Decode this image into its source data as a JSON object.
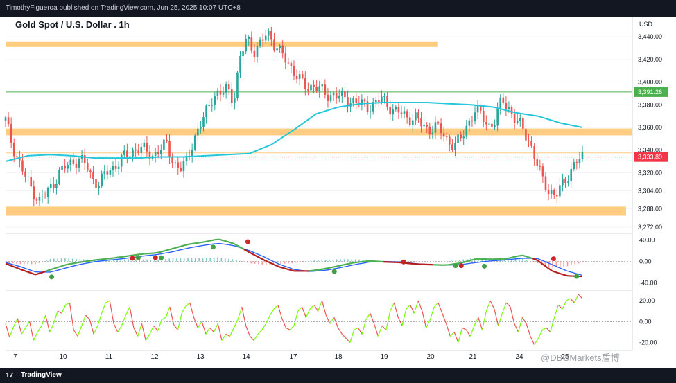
{
  "header": {
    "publisher_line": "TimothyFigueroa published on TradingView.com, Jun 25, 2025 10:07 UTC+8"
  },
  "footer": {
    "brand": "TradingView",
    "watermark": "@DBGMarkets盾博"
  },
  "colors": {
    "zone": "#ffcc80",
    "ma": "#26c6da",
    "candle": "#26a69a",
    "bear": "#ef5350",
    "level_green": "#4caf50",
    "level_red": "#f23645",
    "macd_fast": "#4caf50",
    "macd_slow": "#2962ff",
    "macd_red": "#b71c1c",
    "osc_up": "#76ff03",
    "osc_down": "#ef5350"
  },
  "chart_data": {
    "type": "candlestick",
    "title": "Gold Spot / U.S. Dollar . 1h",
    "currency": "USD",
    "x_ticks": [
      "7",
      "10",
      "11",
      "12",
      "13",
      "14",
      "17",
      "18",
      "19",
      "20",
      "21",
      "24",
      "25"
    ],
    "y_ticks": [
      "3,440.00",
      "3,420.00",
      "3,400.00",
      "3,380.00",
      "3,360.00",
      "3,340.00",
      "3,320.00",
      "3,304.00",
      "3,288.00",
      "3,272.00"
    ],
    "ylim": [
      3267,
      3453
    ],
    "price_labels": [
      {
        "value": 3391.26,
        "text": "3,391.26",
        "color": "green"
      },
      {
        "value": 3333.89,
        "text": "3,333.89",
        "color": "red"
      }
    ],
    "zones": [
      {
        "low": 3432,
        "high": 3436,
        "end_frac": 0.69
      },
      {
        "low": 3353,
        "high": 3359,
        "end_frac": 1.0
      },
      {
        "low": 3282,
        "high": 3290,
        "end_frac": 0.99
      }
    ],
    "hlines": [
      {
        "value": 3391.26,
        "color": "green"
      },
      {
        "value": 3337.5,
        "color": "orange"
      }
    ],
    "close_path": [
      3366,
      3345,
      3330,
      3315,
      3305,
      3295,
      3300,
      3310,
      3320,
      3325,
      3330,
      3332,
      3326,
      3315,
      3310,
      3320,
      3325,
      3330,
      3335,
      3340,
      3342,
      3338,
      3336,
      3340,
      3345,
      3330,
      3322,
      3330,
      3350,
      3360,
      3375,
      3390,
      3388,
      3395,
      3385,
      3420,
      3440,
      3428,
      3432,
      3445,
      3435,
      3425,
      3418,
      3410,
      3400,
      3395,
      3398,
      3392,
      3388,
      3390,
      3386,
      3384,
      3384,
      3380,
      3378,
      3382,
      3385,
      3380,
      3375,
      3372,
      3368,
      3370,
      3362,
      3358,
      3362,
      3355,
      3348,
      3345,
      3350,
      3365,
      3375,
      3370,
      3362,
      3365,
      3385,
      3378,
      3366,
      3360,
      3350,
      3330,
      3315,
      3305,
      3298,
      3310,
      3320,
      3328,
      3334
    ],
    "ma": [
      3330,
      3335,
      3336,
      3335,
      3333,
      3333,
      3333,
      3334,
      3334,
      3335,
      3336,
      3337,
      3345,
      3358,
      3372,
      3378,
      3381,
      3382,
      3382,
      3382,
      3381,
      3380,
      3378,
      3373,
      3370,
      3364,
      3360
    ],
    "macd": {
      "yticks": [
        "40.00",
        "0.00",
        "-40.00"
      ],
      "ylim": [
        -50,
        50
      ],
      "fast": [
        -4,
        -15,
        -25,
        -15,
        -6,
        -1,
        3,
        6,
        10,
        14,
        16,
        24,
        32,
        36,
        42,
        34,
        18,
        3,
        -10,
        -18,
        -18,
        -14,
        -8,
        -2,
        1,
        -1,
        -2,
        -5,
        -6,
        -7,
        -3,
        5,
        4,
        5,
        12,
        3,
        -18,
        -27,
        -28
      ],
      "signal": [
        -2,
        -10,
        -20,
        -20,
        -12,
        -5,
        0,
        3,
        6,
        10,
        13,
        18,
        25,
        30,
        34,
        30,
        21,
        9,
        -5,
        -15,
        -19,
        -17,
        -12,
        -6,
        -1,
        0,
        -1,
        -4,
        -6,
        -7,
        -6,
        -2,
        1,
        3,
        6,
        6,
        -6,
        -18,
        -26
      ],
      "hist": [
        -2,
        -5,
        -5,
        5,
        6,
        4,
        3,
        3,
        4,
        4,
        3,
        6,
        7,
        6,
        8,
        4,
        -3,
        -6,
        -5,
        -3,
        1,
        3,
        4,
        4,
        2,
        -1,
        -1,
        -1,
        0,
        0,
        3,
        7,
        3,
        2,
        6,
        -3,
        -12,
        -9,
        -2
      ],
      "dots": [
        {
          "x": 0.08,
          "y": -29,
          "c": "green"
        },
        {
          "x": 0.22,
          "y": 6,
          "c": "red"
        },
        {
          "x": 0.23,
          "y": 7,
          "c": "green"
        },
        {
          "x": 0.26,
          "y": 7,
          "c": "red"
        },
        {
          "x": 0.27,
          "y": 7,
          "c": "green"
        },
        {
          "x": 0.36,
          "y": 27,
          "c": "green"
        },
        {
          "x": 0.42,
          "y": 37,
          "c": "red"
        },
        {
          "x": 0.57,
          "y": -19,
          "c": "green"
        },
        {
          "x": 0.69,
          "y": -1,
          "c": "red"
        },
        {
          "x": 0.78,
          "y": -8,
          "c": "green"
        },
        {
          "x": 0.79,
          "y": -8,
          "c": "red"
        },
        {
          "x": 0.83,
          "y": -9,
          "c": "green"
        },
        {
          "x": 0.95,
          "y": 5,
          "c": "red"
        },
        {
          "x": 0.99,
          "y": -28,
          "c": "green"
        }
      ]
    },
    "oscillator": {
      "yticks": [
        "20.00",
        "0.00",
        "-20.00"
      ],
      "ylim": [
        -25,
        28
      ],
      "values": [
        -2,
        -15,
        -5,
        3,
        -12,
        -6,
        0,
        -18,
        -10,
        -4,
        6,
        -10,
        -2,
        10,
        8,
        16,
        18,
        -8,
        -14,
        -4,
        6,
        2,
        -12,
        -4,
        8,
        18,
        20,
        -2,
        -10,
        -4,
        6,
        14,
        -6,
        -14,
        -2,
        -18,
        -12,
        -4,
        -9,
        2,
        4,
        14,
        -3,
        -8,
        8,
        15,
        18,
        4,
        -6,
        0,
        -12,
        -6,
        -10,
        -2,
        -18,
        -12,
        -14,
        -6,
        2,
        14,
        -4,
        -14,
        -18,
        -12,
        -8,
        -2,
        6,
        12,
        16,
        3,
        -6,
        -8,
        -4,
        10,
        14,
        4,
        12,
        16,
        10,
        20,
        6,
        -2,
        4,
        -6,
        -12,
        -16,
        -20,
        -8,
        -6,
        -12,
        2,
        8,
        -2,
        -14,
        -4,
        -8,
        10,
        18,
        4,
        -4,
        12,
        16,
        8,
        20,
        10,
        -6,
        2,
        14,
        18,
        8,
        -2,
        -14,
        -10,
        -20,
        -6,
        -8,
        -14,
        -4,
        4,
        -8,
        10,
        20,
        12,
        -4,
        8,
        18,
        14,
        -2,
        -10,
        4,
        -2,
        -14,
        -22,
        -16,
        -8,
        -6,
        -10,
        4,
        16,
        12,
        20,
        22,
        18,
        26,
        22
      ]
    }
  }
}
